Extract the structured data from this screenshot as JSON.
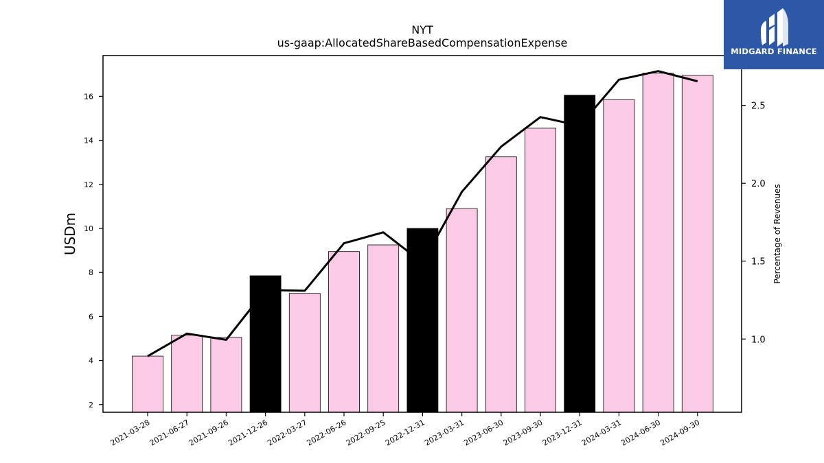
{
  "chart_data": {
    "type": "bar",
    "title": "NYT",
    "subtitle": "us-gaap:AllocatedShareBasedCompensationExpense",
    "ylabel": "USDm",
    "y2label": "Percentage of Revenues",
    "categories": [
      "2021-03-28",
      "2021-06-27",
      "2021-09-26",
      "2021-12-26",
      "2022-03-27",
      "2022-06-26",
      "2022-09-25",
      "2022-12-31",
      "2023-03-31",
      "2023-06-30",
      "2023-09-30",
      "2023-12-31",
      "2024-03-31",
      "2024-06-30",
      "2024-09-30"
    ],
    "series": [
      {
        "type": "bar",
        "values": [
          4.2,
          5.15,
          5.05,
          7.85,
          7.05,
          8.95,
          9.25,
          10.0,
          10.9,
          13.25,
          14.55,
          16.05,
          15.85,
          17.05,
          16.95
        ],
        "highlight": [
          false,
          false,
          false,
          true,
          false,
          false,
          false,
          true,
          false,
          false,
          false,
          true,
          false,
          false,
          false
        ]
      },
      {
        "type": "line",
        "axis": "right",
        "values": [
          0.89,
          1.035,
          0.995,
          1.315,
          1.31,
          1.615,
          1.685,
          1.49,
          1.945,
          2.235,
          2.425,
          2.37,
          2.665,
          2.72,
          2.655
        ]
      }
    ],
    "ylim": [
      1.65,
      17.85
    ],
    "yticks": [
      "2",
      "4",
      "6",
      "8",
      "10",
      "12",
      "14",
      "16"
    ],
    "y2lim": [
      0.53,
      2.82
    ],
    "y2ticks": [
      "1.0",
      "1.5",
      "2.0",
      "2.5"
    ],
    "grid": false,
    "legend": "none",
    "colors": {
      "bar": "#fbcae4",
      "highlight": "#000000",
      "line": "#000000",
      "edge": "#000000"
    }
  },
  "logo": {
    "text": "MIDGARD FINANCE",
    "background": "#2d58a8"
  }
}
